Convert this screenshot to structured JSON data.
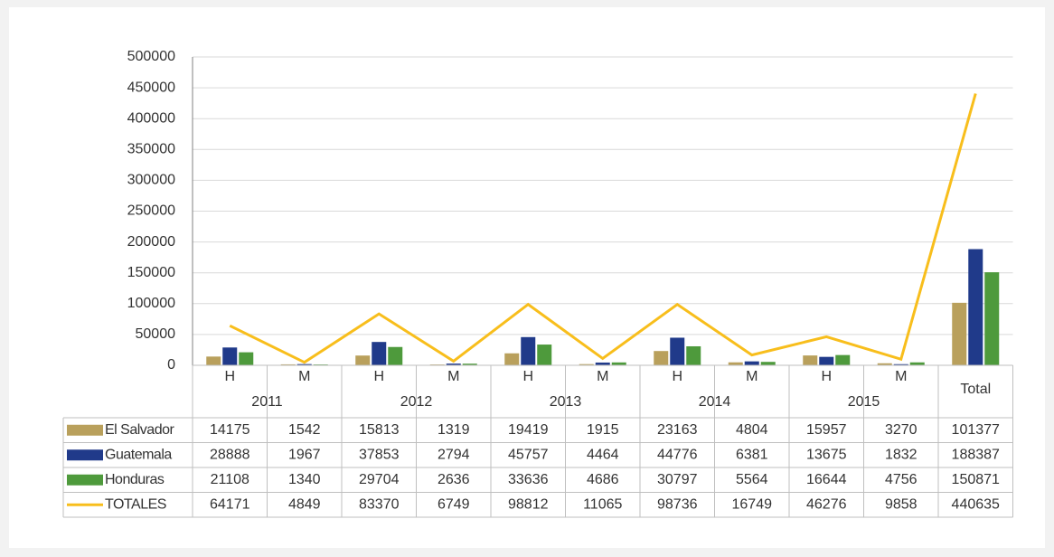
{
  "chart_data": {
    "type": "bar",
    "categories": [
      "H",
      "M",
      "H",
      "M",
      "H",
      "M",
      "H",
      "M",
      "H",
      "M",
      null
    ],
    "groups": [
      "2011",
      "2012",
      "2013",
      "2014",
      "2015",
      "Total"
    ],
    "series": [
      {
        "name": "El Salvador",
        "color": "#b9a05c",
        "values": [
          14175,
          1542,
          15813,
          1319,
          19419,
          1915,
          23163,
          4804,
          15957,
          3270,
          101377
        ]
      },
      {
        "name": "Guatemala",
        "color": "#203a8a",
        "values": [
          28888,
          1967,
          37853,
          2794,
          45757,
          4464,
          44776,
          6381,
          13675,
          1832,
          188387
        ]
      },
      {
        "name": "Honduras",
        "color": "#4e9a3c",
        "values": [
          21108,
          1340,
          29704,
          2636,
          33636,
          4686,
          30797,
          5564,
          16644,
          4756,
          150871
        ]
      },
      {
        "name": "TOTALES",
        "type": "line",
        "color": "#f8be1c",
        "values": [
          64171,
          4849,
          83370,
          6749,
          98812,
          11065,
          98736,
          16749,
          46276,
          9858,
          440635
        ]
      }
    ],
    "ylim": [
      0,
      500000
    ],
    "yticks": [
      0,
      50000,
      100000,
      150000,
      200000,
      250000,
      300000,
      350000,
      400000,
      450000,
      500000
    ],
    "grid": true
  }
}
